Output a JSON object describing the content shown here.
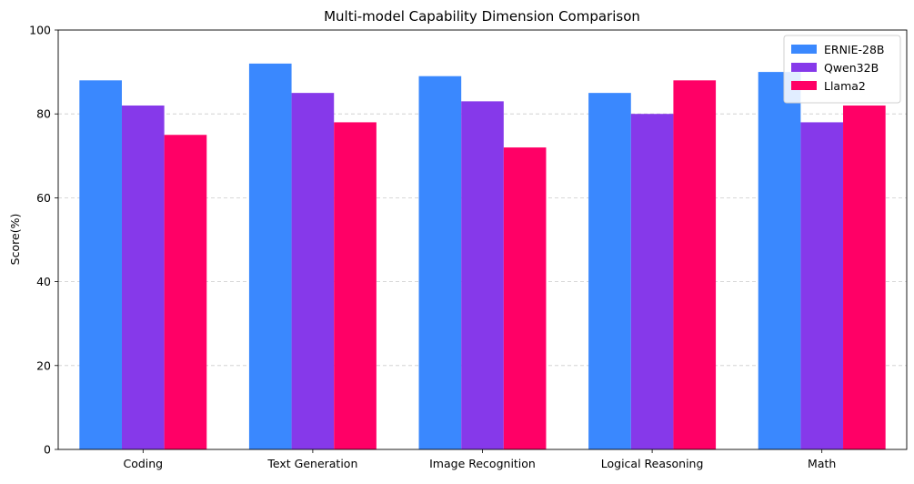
{
  "chart_data": {
    "type": "bar",
    "title": "Multi-model Capability Dimension Comparison",
    "xlabel": "",
    "ylabel": "Score(%)",
    "ylim": [
      0,
      100
    ],
    "yticks": [
      0,
      20,
      40,
      60,
      80,
      100
    ],
    "grid": "horizontal dashed",
    "legend_position": "top-right",
    "categories": [
      "Coding",
      "Text Generation",
      "Image Recognition",
      "Logical Reasoning",
      "Math"
    ],
    "series": [
      {
        "name": "ERNIE-28B",
        "color": "#3a88fe",
        "values": [
          88,
          92,
          89,
          85,
          90
        ]
      },
      {
        "name": "Qwen32B",
        "color": "#8639ea",
        "values": [
          82,
          85,
          83,
          80,
          78
        ]
      },
      {
        "name": "Llama2",
        "color": "#ff0066",
        "values": [
          75,
          78,
          72,
          88,
          82
        ]
      }
    ]
  }
}
